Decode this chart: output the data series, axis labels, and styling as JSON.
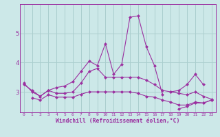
{
  "x": [
    0,
    1,
    2,
    3,
    4,
    5,
    6,
    7,
    8,
    9,
    10,
    11,
    12,
    13,
    14,
    15,
    16,
    17,
    18,
    19,
    20,
    21,
    22,
    23
  ],
  "line1": [
    3.3,
    3.0,
    2.85,
    3.05,
    3.15,
    3.2,
    3.35,
    3.7,
    4.05,
    3.9,
    4.65,
    3.6,
    3.95,
    5.55,
    5.6,
    4.55,
    3.9,
    2.9,
    null,
    null,
    null,
    null,
    null,
    null
  ],
  "line2": [
    null,
    null,
    null,
    null,
    null,
    null,
    null,
    null,
    null,
    null,
    null,
    null,
    null,
    null,
    null,
    null,
    null,
    null,
    3.0,
    3.05,
    3.25,
    3.6,
    3.25,
    null
  ],
  "line3": [
    3.25,
    3.05,
    2.85,
    3.05,
    2.95,
    2.95,
    3.0,
    3.3,
    3.7,
    3.8,
    3.5,
    3.5,
    3.5,
    3.5,
    3.5,
    3.4,
    3.25,
    3.05,
    3.0,
    2.95,
    2.9,
    3.0,
    2.85,
    2.75
  ],
  "line4": [
    null,
    2.8,
    2.72,
    2.9,
    2.82,
    2.82,
    2.82,
    2.92,
    3.0,
    3.0,
    3.0,
    3.0,
    3.0,
    3.0,
    2.95,
    2.85,
    2.82,
    2.72,
    2.65,
    2.55,
    2.55,
    2.65,
    2.62,
    2.72
  ],
  "line5": [
    null,
    null,
    null,
    null,
    null,
    null,
    null,
    null,
    null,
    null,
    null,
    null,
    null,
    null,
    null,
    null,
    null,
    null,
    null,
    2.42,
    2.5,
    2.62,
    2.62,
    2.72
  ],
  "line_color": "#9b30a0",
  "bg_color": "#cce8e8",
  "grid_color": "#aacece",
  "ylabel_ticks": [
    3,
    4,
    5
  ],
  "xlabel": "Windchill (Refroidissement éolien,°C)",
  "xlim": [
    -0.5,
    23.5
  ],
  "ylim": [
    2.3,
    6.0
  ]
}
